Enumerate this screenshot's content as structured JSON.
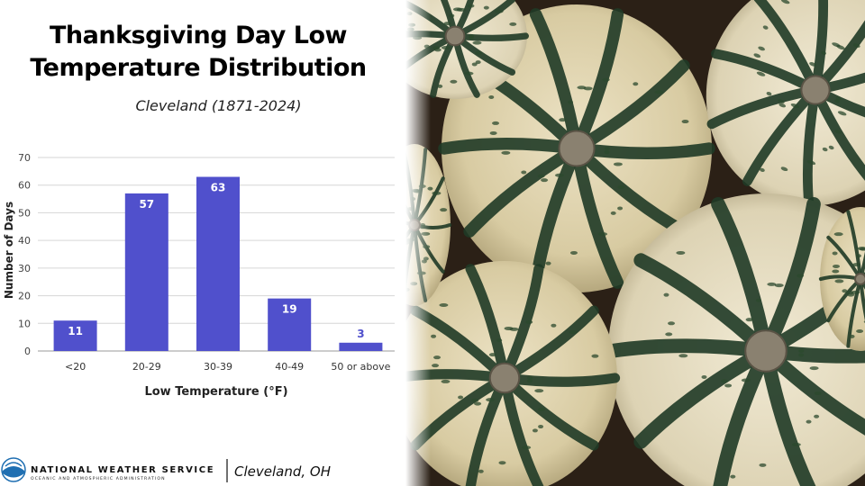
{
  "header": {
    "title_line1": "Thanksgiving Day Low",
    "title_line2": "Temperature Distribution",
    "subtitle": "Cleveland (1871-2024)"
  },
  "chart_data": {
    "type": "bar",
    "categories": [
      "<20",
      "20-29",
      "30-39",
      "40-49",
      "50 or above"
    ],
    "values": [
      11,
      57,
      63,
      19,
      3
    ],
    "data_labels": [
      "11",
      "57",
      "63",
      "19",
      "3"
    ],
    "xlabel": "Low Temperature (°F)",
    "ylabel": "Number of Days",
    "ylim": [
      0,
      70
    ],
    "yticks": [
      0,
      10,
      20,
      30,
      40,
      50,
      60,
      70
    ],
    "grid": true,
    "bar_color": "#5050cc",
    "label_color_inside": "#ffffff",
    "label_color_outside": "#5050cc"
  },
  "footer": {
    "org_name": "NATIONAL WEATHER SERVICE",
    "org_sub": "OCEANIC AND ATMOSPHERIC ADMINISTRATION",
    "location": "Cleveland, OH"
  },
  "colors": {
    "noaa_blue": "#1f6fb2",
    "squash_cream": "#e6dcbc",
    "squash_green": "#1f3a26"
  }
}
